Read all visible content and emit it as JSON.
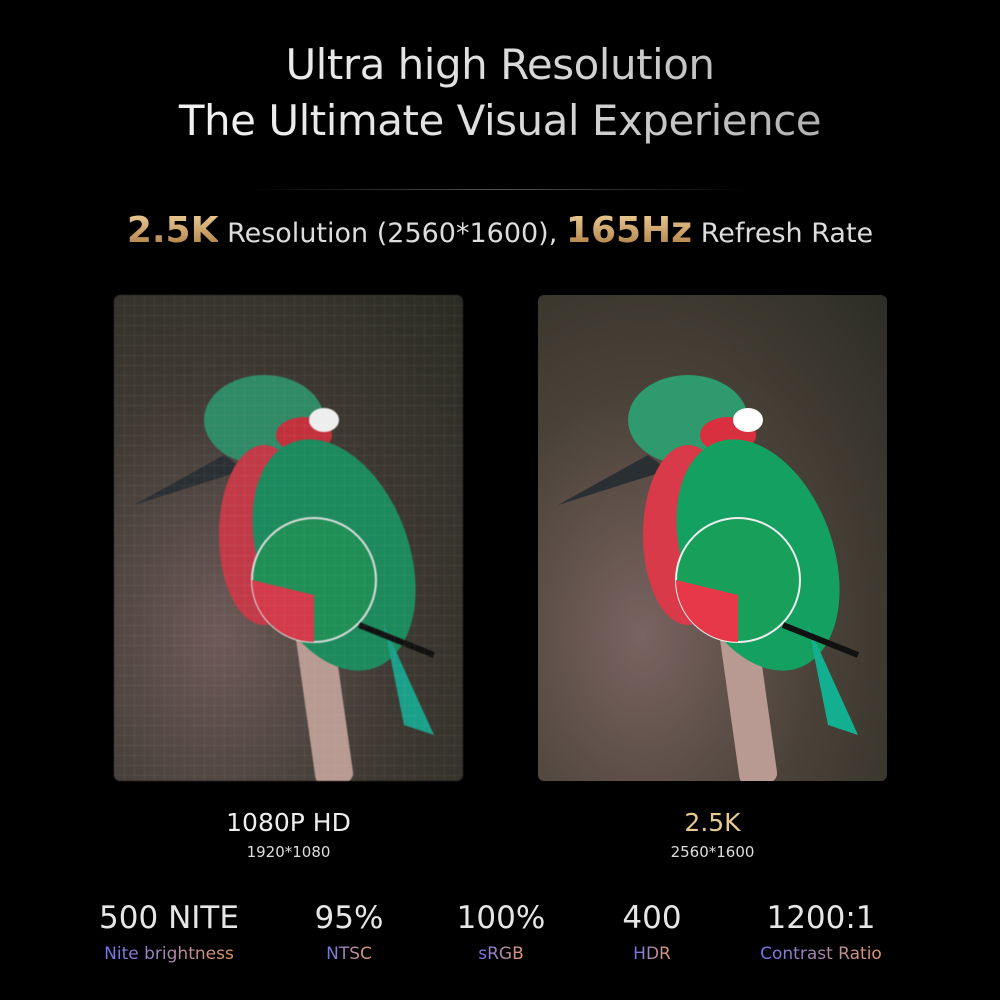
{
  "header": {
    "title_line1": "Ultra high Resolution",
    "title_line2": "The Ultimate Visual Experience"
  },
  "subtitle": {
    "res_highlight": "2.5K",
    "res_text": " Resolution (2560*1600), ",
    "hz_highlight": "165Hz",
    "hz_text": " Refresh Rate"
  },
  "comparison": [
    {
      "label": "1080P HD",
      "sublabel": "1920*1080"
    },
    {
      "label": "2.5K",
      "sublabel": "2560*1600"
    }
  ],
  "stats": [
    {
      "value": "500 NITE",
      "label": "Nite brightness"
    },
    {
      "value": "95%",
      "label": "NTSC"
    },
    {
      "value": "100%",
      "label": "sRGB"
    },
    {
      "value": "400",
      "label": "HDR"
    },
    {
      "value": "1200:1",
      "label": "Contrast Ratio"
    }
  ],
  "colors": {
    "gold": "#c99a5b",
    "background": "#000000",
    "label_gradient_start": "#6f74f0",
    "label_gradient_end": "#e59a6a"
  }
}
